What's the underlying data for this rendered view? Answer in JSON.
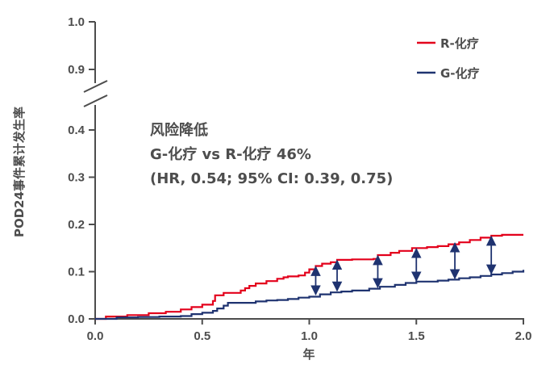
{
  "chart_data": {
    "type": "line",
    "step": true,
    "xlabel": "年",
    "ylabel": "POD24事件累计发生率",
    "xlim": [
      0.0,
      2.0
    ],
    "xticks": [
      0.0,
      0.5,
      1.0,
      1.5,
      2.0
    ],
    "xtick_labels": [
      "0.0",
      "0.5",
      "1.0",
      "1.5",
      "2.0"
    ],
    "yticks": [
      0.0,
      0.1,
      0.2,
      0.3,
      0.4,
      0.9,
      1.0
    ],
    "ytick_labels": [
      "0.0",
      "0.1",
      "0.2",
      "0.3",
      "0.4",
      "0.9",
      "1.0"
    ],
    "y_axis_break": [
      0.4,
      0.9
    ],
    "legend_position": "top-right",
    "series": [
      {
        "name": "R-化疗",
        "color": "#e3001b",
        "points": [
          [
            0.0,
            0.0
          ],
          [
            0.05,
            0.005
          ],
          [
            0.15,
            0.008
          ],
          [
            0.25,
            0.012
          ],
          [
            0.33,
            0.015
          ],
          [
            0.4,
            0.02
          ],
          [
            0.45,
            0.025
          ],
          [
            0.5,
            0.03
          ],
          [
            0.55,
            0.038
          ],
          [
            0.56,
            0.05
          ],
          [
            0.6,
            0.055
          ],
          [
            0.65,
            0.055
          ],
          [
            0.68,
            0.06
          ],
          [
            0.7,
            0.065
          ],
          [
            0.72,
            0.07
          ],
          [
            0.75,
            0.075
          ],
          [
            0.8,
            0.08
          ],
          [
            0.85,
            0.085
          ],
          [
            0.88,
            0.088
          ],
          [
            0.9,
            0.09
          ],
          [
            0.95,
            0.092
          ],
          [
            0.98,
            0.098
          ],
          [
            1.0,
            0.105
          ],
          [
            1.03,
            0.112
          ],
          [
            1.06,
            0.117
          ],
          [
            1.1,
            0.12
          ],
          [
            1.13,
            0.125
          ],
          [
            1.2,
            0.126
          ],
          [
            1.3,
            0.127
          ],
          [
            1.32,
            0.135
          ],
          [
            1.38,
            0.14
          ],
          [
            1.42,
            0.144
          ],
          [
            1.48,
            0.15
          ],
          [
            1.55,
            0.152
          ],
          [
            1.6,
            0.154
          ],
          [
            1.65,
            0.158
          ],
          [
            1.7,
            0.162
          ],
          [
            1.75,
            0.167
          ],
          [
            1.8,
            0.172
          ],
          [
            1.85,
            0.176
          ],
          [
            1.9,
            0.178
          ],
          [
            2.0,
            0.178
          ]
        ]
      },
      {
        "name": "G-化疗",
        "color": "#1f3370",
        "points": [
          [
            0.0,
            0.0
          ],
          [
            0.1,
            0.003
          ],
          [
            0.2,
            0.004
          ],
          [
            0.3,
            0.005
          ],
          [
            0.4,
            0.006
          ],
          [
            0.45,
            0.01
          ],
          [
            0.5,
            0.013
          ],
          [
            0.55,
            0.017
          ],
          [
            0.57,
            0.022
          ],
          [
            0.6,
            0.028
          ],
          [
            0.62,
            0.034
          ],
          [
            0.7,
            0.034
          ],
          [
            0.75,
            0.037
          ],
          [
            0.8,
            0.039
          ],
          [
            0.85,
            0.04
          ],
          [
            0.9,
            0.042
          ],
          [
            0.95,
            0.045
          ],
          [
            1.0,
            0.047
          ],
          [
            1.05,
            0.052
          ],
          [
            1.1,
            0.056
          ],
          [
            1.15,
            0.058
          ],
          [
            1.2,
            0.06
          ],
          [
            1.28,
            0.064
          ],
          [
            1.33,
            0.068
          ],
          [
            1.4,
            0.072
          ],
          [
            1.45,
            0.076
          ],
          [
            1.5,
            0.079
          ],
          [
            1.6,
            0.081
          ],
          [
            1.65,
            0.083
          ],
          [
            1.7,
            0.086
          ],
          [
            1.75,
            0.088
          ],
          [
            1.8,
            0.091
          ],
          [
            1.85,
            0.094
          ],
          [
            1.9,
            0.097
          ],
          [
            1.95,
            0.1
          ],
          [
            2.0,
            0.104
          ]
        ]
      }
    ],
    "difference_arrows": [
      {
        "x": 1.03,
        "top": 0.112,
        "bottom": 0.05
      },
      {
        "x": 1.13,
        "top": 0.125,
        "bottom": 0.058
      },
      {
        "x": 1.32,
        "top": 0.135,
        "bottom": 0.065
      },
      {
        "x": 1.5,
        "top": 0.15,
        "bottom": 0.079
      },
      {
        "x": 1.68,
        "top": 0.162,
        "bottom": 0.084
      },
      {
        "x": 1.85,
        "top": 0.176,
        "bottom": 0.094
      }
    ],
    "annotation": {
      "line1": "风险降低",
      "line2": "G-化疗 vs R-化疗 46%",
      "line3": "(HR, 0.54; 95% CI: 0.39, 0.75)"
    },
    "axis_color": "#4d4d4d",
    "arrow_color": "#1f3370"
  }
}
